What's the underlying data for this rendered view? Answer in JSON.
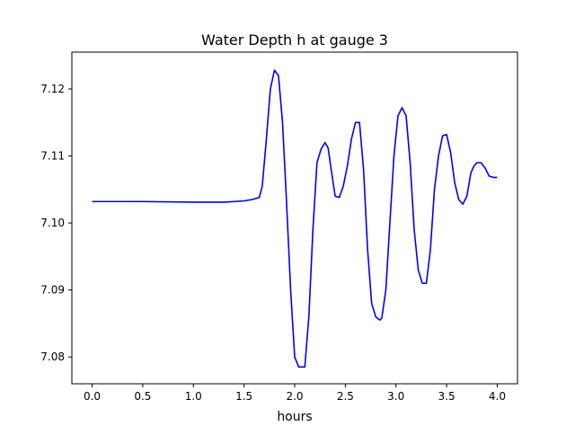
{
  "chart_data": {
    "type": "line",
    "title": "Water Depth h at gauge 3",
    "xlabel": "hours",
    "ylabel": "",
    "xlim": [
      -0.2,
      4.2
    ],
    "ylim": [
      7.076,
      7.1255
    ],
    "xticks": [
      0.0,
      0.5,
      1.0,
      1.5,
      2.0,
      2.5,
      3.0,
      3.5,
      4.0
    ],
    "xtick_labels": [
      "0.0",
      "0.5",
      "1.0",
      "1.5",
      "2.0",
      "2.5",
      "3.0",
      "3.5",
      "4.0"
    ],
    "yticks": [
      7.08,
      7.09,
      7.1,
      7.11,
      7.12
    ],
    "ytick_labels": [
      "7.08",
      "7.09",
      "7.10",
      "7.11",
      "7.12"
    ],
    "grid": false,
    "series": [
      {
        "color": "#0000ff",
        "x": [
          0.0,
          0.5,
          1.0,
          1.3,
          1.5,
          1.58,
          1.65,
          1.68,
          1.72,
          1.76,
          1.8,
          1.84,
          1.88,
          1.92,
          1.96,
          2.0,
          2.04,
          2.08,
          2.1,
          2.14,
          2.18,
          2.22,
          2.26,
          2.3,
          2.33,
          2.36,
          2.4,
          2.44,
          2.48,
          2.52,
          2.56,
          2.6,
          2.64,
          2.68,
          2.72,
          2.76,
          2.8,
          2.84,
          2.86,
          2.9,
          2.94,
          2.98,
          3.02,
          3.06,
          3.1,
          3.14,
          3.18,
          3.22,
          3.26,
          3.3,
          3.34,
          3.38,
          3.42,
          3.46,
          3.5,
          3.54,
          3.58,
          3.62,
          3.66,
          3.7,
          3.74,
          3.77,
          3.8,
          3.84,
          3.88,
          3.92,
          3.96,
          4.0
        ],
        "y": [
          7.1032,
          7.1032,
          7.1031,
          7.1031,
          7.1033,
          7.1035,
          7.1038,
          7.1055,
          7.1125,
          7.12,
          7.1228,
          7.122,
          7.115,
          7.103,
          7.09,
          7.08,
          7.0785,
          7.0785,
          7.0785,
          7.086,
          7.099,
          7.109,
          7.111,
          7.112,
          7.1112,
          7.108,
          7.104,
          7.1038,
          7.1055,
          7.1085,
          7.1125,
          7.115,
          7.115,
          7.108,
          7.096,
          7.088,
          7.086,
          7.0855,
          7.0858,
          7.09,
          7.1,
          7.11,
          7.116,
          7.1172,
          7.116,
          7.109,
          7.099,
          7.093,
          7.091,
          7.091,
          7.096,
          7.105,
          7.11,
          7.113,
          7.1132,
          7.1105,
          7.106,
          7.1035,
          7.1028,
          7.104,
          7.1075,
          7.1085,
          7.109,
          7.109,
          7.1082,
          7.107,
          7.1068,
          7.1068
        ]
      }
    ]
  }
}
